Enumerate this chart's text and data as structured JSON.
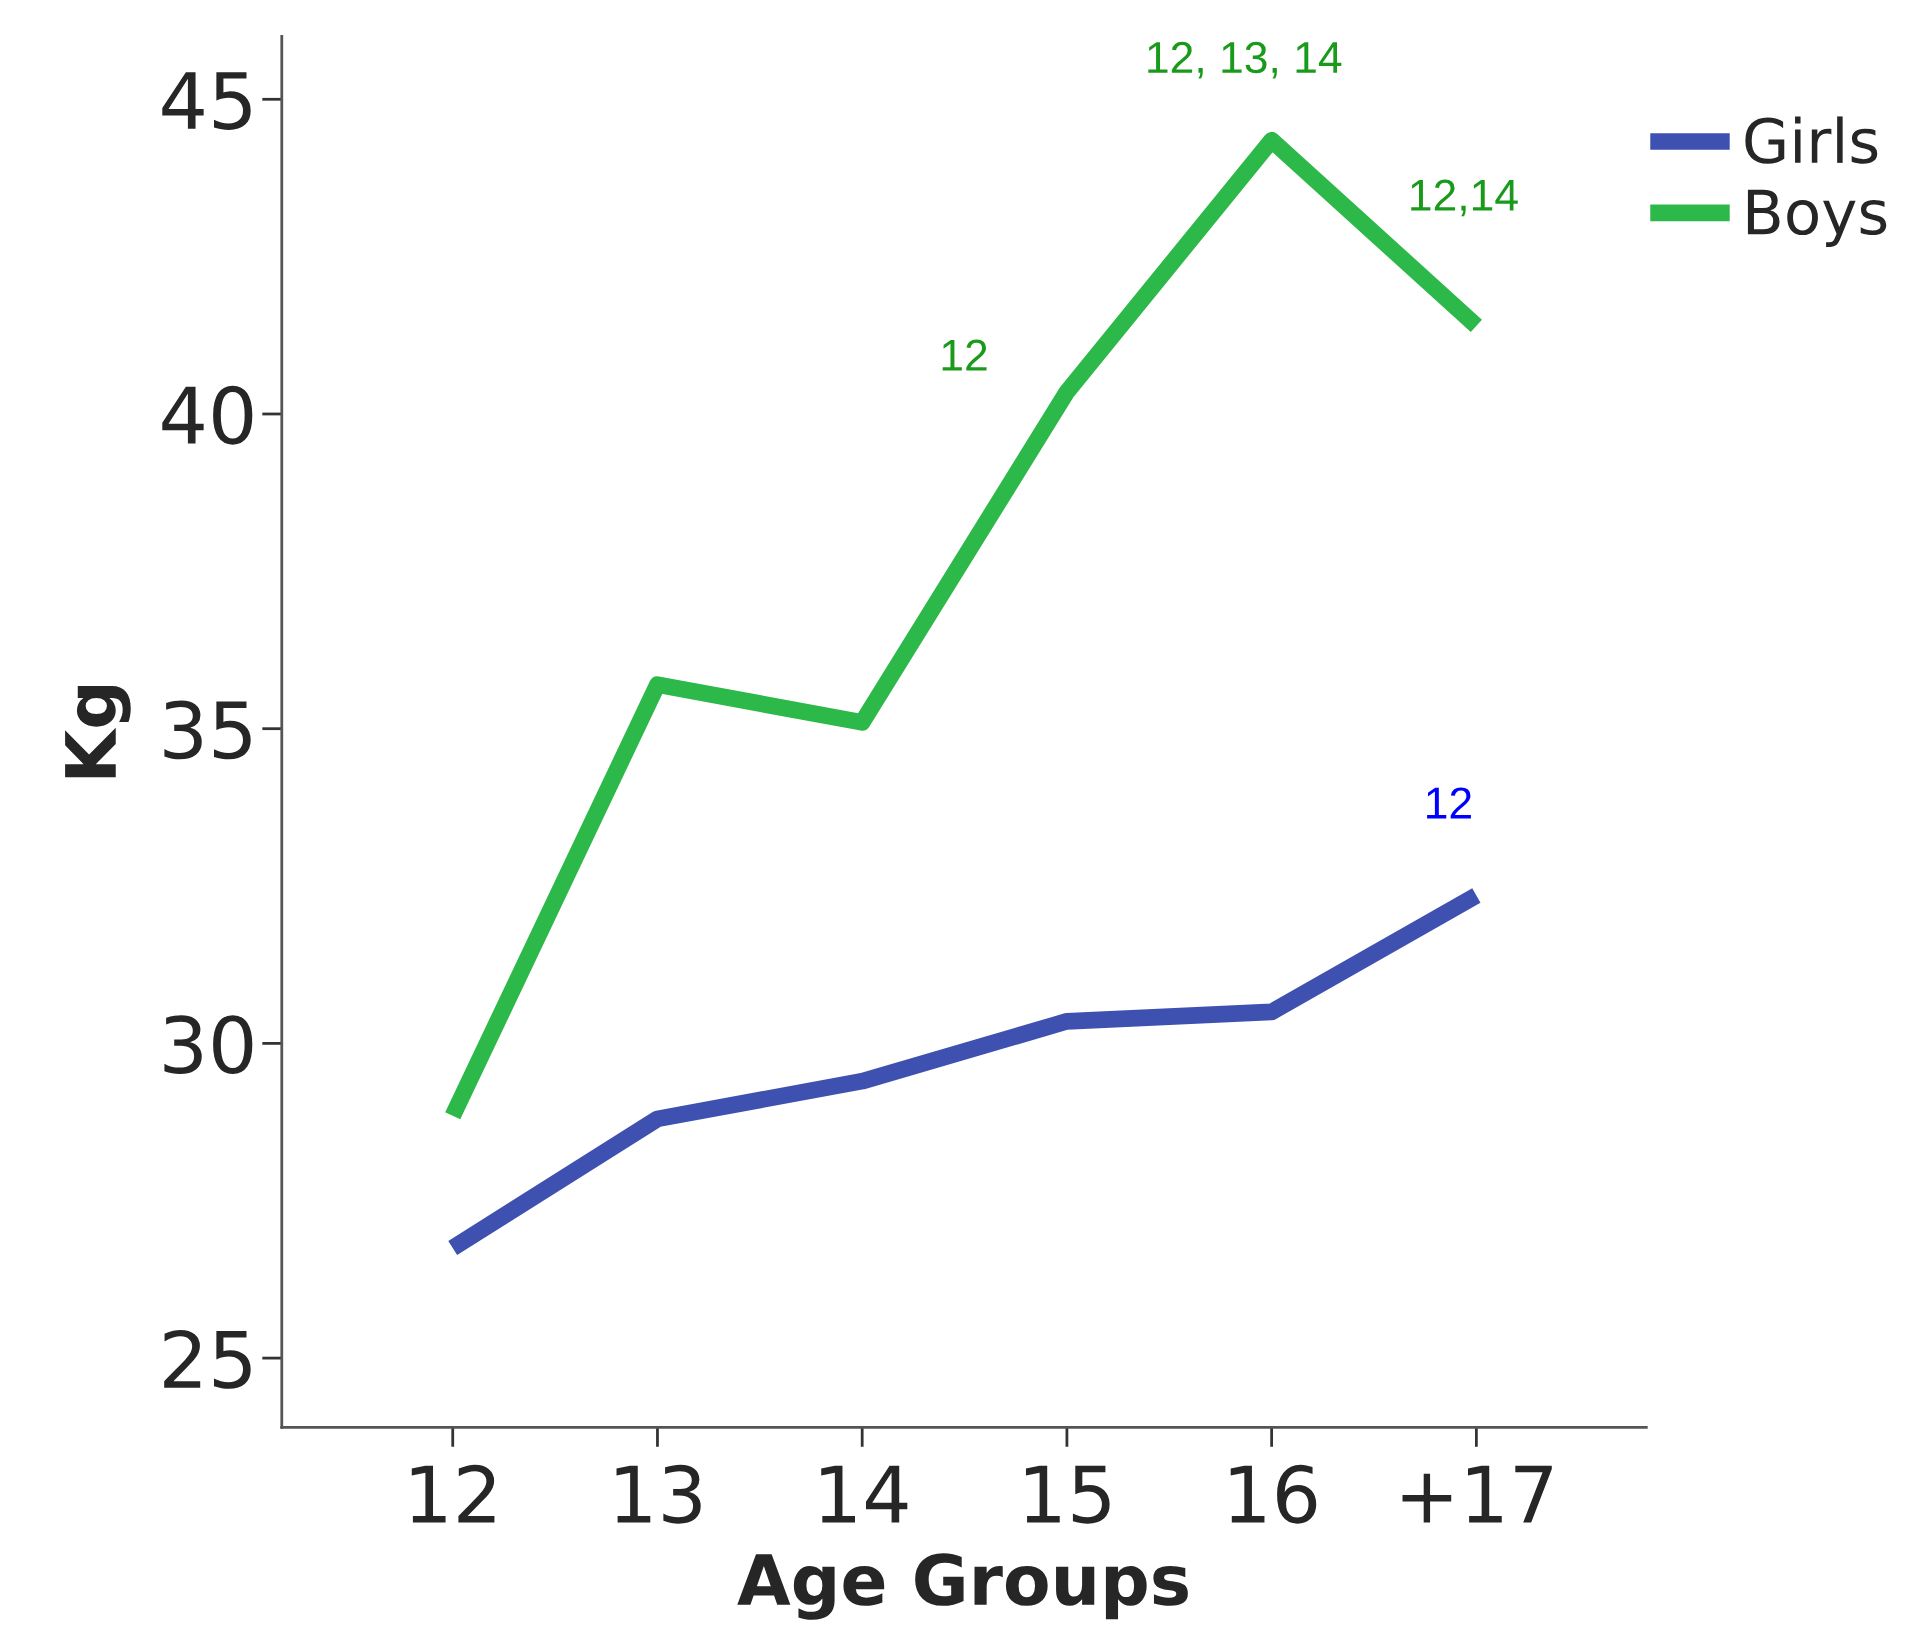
{
  "chart_data": {
    "type": "line",
    "xlabel": "Age Groups",
    "ylabel": "Kg",
    "categories": [
      "12",
      "13",
      "14",
      "15",
      "16",
      "+17"
    ],
    "series": [
      {
        "name": "Girls",
        "color": "#3f51b0",
        "values": [
          26.75,
          28.8,
          29.4,
          30.35,
          30.5,
          32.35
        ]
      },
      {
        "name": "Boys",
        "color": "#2db84a",
        "values": [
          28.85,
          35.7,
          35.1,
          40.35,
          44.35,
          41.4
        ]
      }
    ],
    "ylim": [
      23.9,
      46.0
    ],
    "yticks": [
      25,
      30,
      35,
      40,
      45
    ],
    "grid": false,
    "legend": "top right",
    "marker": "none",
    "line_style": "solid",
    "annotations": [
      "12, 13, 14",
      "12,14",
      "12",
      "12"
    ]
  }
}
